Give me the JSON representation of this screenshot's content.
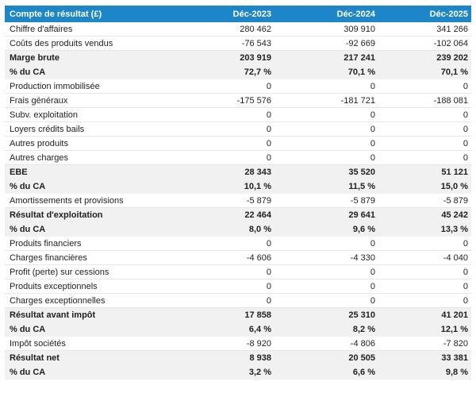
{
  "table": {
    "title": "Compte de résultat (£)",
    "columns": [
      "Déc-2023",
      "Déc-2024",
      "Déc-2025"
    ],
    "rows": [
      {
        "label": "Chiffre d'affaires",
        "values": [
          "280 462",
          "309 910",
          "341 266"
        ],
        "style": "normal"
      },
      {
        "label": "Coûts des produits vendus",
        "values": [
          "-76 543",
          "-92 669",
          "-102 064"
        ],
        "style": "normal"
      },
      {
        "label": "Marge brute",
        "values": [
          "203 919",
          "217 241",
          "239 202"
        ],
        "style": "bold"
      },
      {
        "label": "% du CA",
        "values": [
          "72,7 %",
          "70,1 %",
          "70,1 %"
        ],
        "style": "bold"
      },
      {
        "label": "Production immobilisée",
        "values": [
          "0",
          "0",
          "0"
        ],
        "style": "normal"
      },
      {
        "label": "Frais généraux",
        "values": [
          "-175 576",
          "-181 721",
          "-188 081"
        ],
        "style": "normal"
      },
      {
        "label": "Subv. exploitation",
        "values": [
          "0",
          "0",
          "0"
        ],
        "style": "normal"
      },
      {
        "label": "Loyers crédits bails",
        "values": [
          "0",
          "0",
          "0"
        ],
        "style": "normal"
      },
      {
        "label": "Autres produits",
        "values": [
          "0",
          "0",
          "0"
        ],
        "style": "normal"
      },
      {
        "label": "Autres charges",
        "values": [
          "0",
          "0",
          "0"
        ],
        "style": "normal"
      },
      {
        "label": "EBE",
        "values": [
          "28 343",
          "35 520",
          "51 121"
        ],
        "style": "bold"
      },
      {
        "label": "% du CA",
        "values": [
          "10,1 %",
          "11,5 %",
          "15,0 %"
        ],
        "style": "bold"
      },
      {
        "label": "Amortissements et provisions",
        "values": [
          "-5 879",
          "-5 879",
          "-5 879"
        ],
        "style": "normal"
      },
      {
        "label": "Résultat d'exploitation",
        "values": [
          "22 464",
          "29 641",
          "45 242"
        ],
        "style": "bold"
      },
      {
        "label": "% du CA",
        "values": [
          "8,0 %",
          "9,6 %",
          "13,3 %"
        ],
        "style": "bold"
      },
      {
        "label": "Produits financiers",
        "values": [
          "0",
          "0",
          "0"
        ],
        "style": "normal"
      },
      {
        "label": "Charges financières",
        "values": [
          "-4 606",
          "-4 330",
          "-4 040"
        ],
        "style": "normal"
      },
      {
        "label": "Profit (perte) sur cessions",
        "values": [
          "0",
          "0",
          "0"
        ],
        "style": "normal"
      },
      {
        "label": "Produits exceptionnels",
        "values": [
          "0",
          "0",
          "0"
        ],
        "style": "normal"
      },
      {
        "label": "Charges exceptionnelles",
        "values": [
          "0",
          "0",
          "0"
        ],
        "style": "normal"
      },
      {
        "label": "Résultat avant impôt",
        "values": [
          "17 858",
          "25 310",
          "41 201"
        ],
        "style": "bold"
      },
      {
        "label": "% du CA",
        "values": [
          "6,4 %",
          "8,2 %",
          "12,1 %"
        ],
        "style": "bold"
      },
      {
        "label": "Impôt sociétés",
        "values": [
          "-8 920",
          "-4 806",
          "-7 820"
        ],
        "style": "normal"
      },
      {
        "label": "Résultat net",
        "values": [
          "8 938",
          "20 505",
          "33 381"
        ],
        "style": "bold"
      },
      {
        "label": "% du CA",
        "values": [
          "3,2 %",
          "6,6 %",
          "9,8 %"
        ],
        "style": "bold"
      }
    ],
    "colors": {
      "header_bg": "#1d86c8",
      "header_text": "#ffffff",
      "band_bg": "#f1f1f2",
      "row_border": "#e6e6e6",
      "text": "#1f1f1f"
    }
  },
  "chart_data": {
    "type": "table",
    "title": "Compte de résultat (£)",
    "columns": [
      "Compte de résultat (£)",
      "Déc-2023",
      "Déc-2024",
      "Déc-2025"
    ],
    "rows": [
      [
        "Chiffre d'affaires",
        280462,
        309910,
        341266
      ],
      [
        "Coûts des produits vendus",
        -76543,
        -92669,
        -102064
      ],
      [
        "Marge brute",
        203919,
        217241,
        239202
      ],
      [
        "% du CA",
        "72,7 %",
        "70,1 %",
        "70,1 %"
      ],
      [
        "Production immobilisée",
        0,
        0,
        0
      ],
      [
        "Frais généraux",
        -175576,
        -181721,
        -188081
      ],
      [
        "Subv. exploitation",
        0,
        0,
        0
      ],
      [
        "Loyers crédits bails",
        0,
        0,
        0
      ],
      [
        "Autres produits",
        0,
        0,
        0
      ],
      [
        "Autres charges",
        0,
        0,
        0
      ],
      [
        "EBE",
        28343,
        35520,
        51121
      ],
      [
        "% du CA",
        "10,1 %",
        "11,5 %",
        "15,0 %"
      ],
      [
        "Amortissements et provisions",
        -5879,
        -5879,
        -5879
      ],
      [
        "Résultat d'exploitation",
        22464,
        29641,
        45242
      ],
      [
        "% du CA",
        "8,0 %",
        "9,6 %",
        "13,3 %"
      ],
      [
        "Produits financiers",
        0,
        0,
        0
      ],
      [
        "Charges financières",
        -4606,
        -4330,
        -4040
      ],
      [
        "Profit (perte) sur cessions",
        0,
        0,
        0
      ],
      [
        "Produits exceptionnels",
        0,
        0,
        0
      ],
      [
        "Charges exceptionnelles",
        0,
        0,
        0
      ],
      [
        "Résultat avant impôt",
        17858,
        25310,
        41201
      ],
      [
        "% du CA",
        "6,4 %",
        "8,2 %",
        "12,1 %"
      ],
      [
        "Impôt sociétés",
        -8920,
        -4806,
        -7820
      ],
      [
        "Résultat net",
        8938,
        20505,
        33381
      ],
      [
        "% du CA",
        "3,2 %",
        "6,6 %",
        "9,8 %"
      ]
    ],
    "layout": {
      "header_style": "blue-bar",
      "subtotal_rows_bold_gray": true,
      "value_alignment": "right"
    }
  }
}
